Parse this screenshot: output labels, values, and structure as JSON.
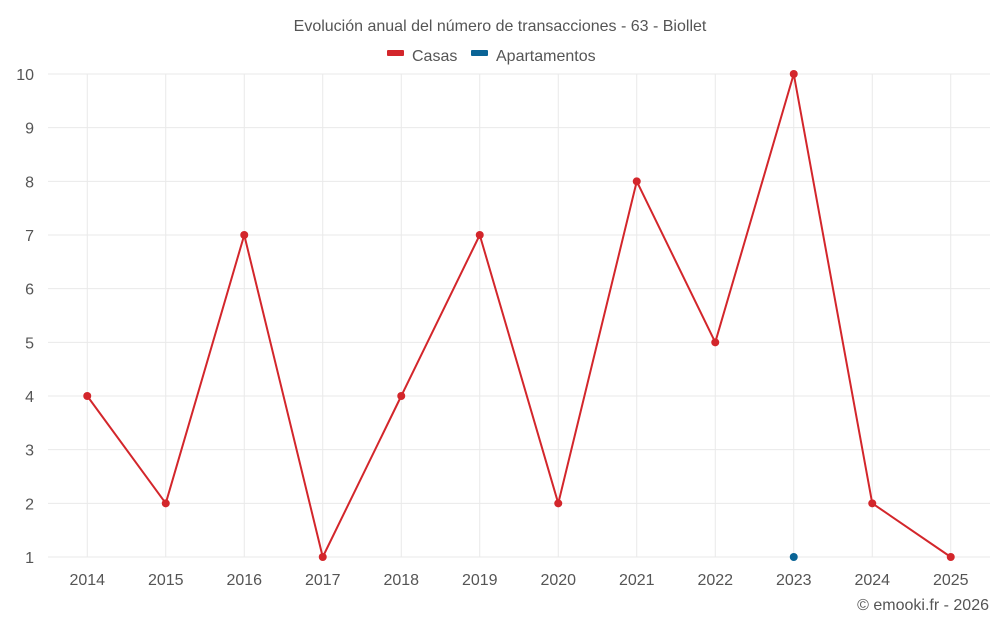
{
  "chart_data": {
    "type": "line",
    "title": "Evolución anual del número de transacciones - 63 - Biollet",
    "categories": [
      "2014",
      "2015",
      "2016",
      "2017",
      "2018",
      "2019",
      "2020",
      "2021",
      "2022",
      "2023",
      "2024",
      "2025"
    ],
    "series": [
      {
        "name": "Casas",
        "color": "#d3262b",
        "values": [
          4,
          2,
          7,
          1,
          4,
          7,
          2,
          8,
          5,
          10,
          2,
          1
        ]
      },
      {
        "name": "Apartamentos",
        "color": "#0a6496",
        "values": [
          null,
          null,
          null,
          null,
          null,
          null,
          null,
          null,
          null,
          1,
          null,
          null
        ]
      }
    ],
    "yticks": [
      1,
      2,
      3,
      4,
      5,
      6,
      7,
      8,
      9,
      10
    ],
    "ylim": [
      1,
      10
    ],
    "xlabel": "",
    "ylabel": "",
    "grid": true,
    "legend_position": "top-center"
  },
  "credit": "© emooki.fr - 2026"
}
